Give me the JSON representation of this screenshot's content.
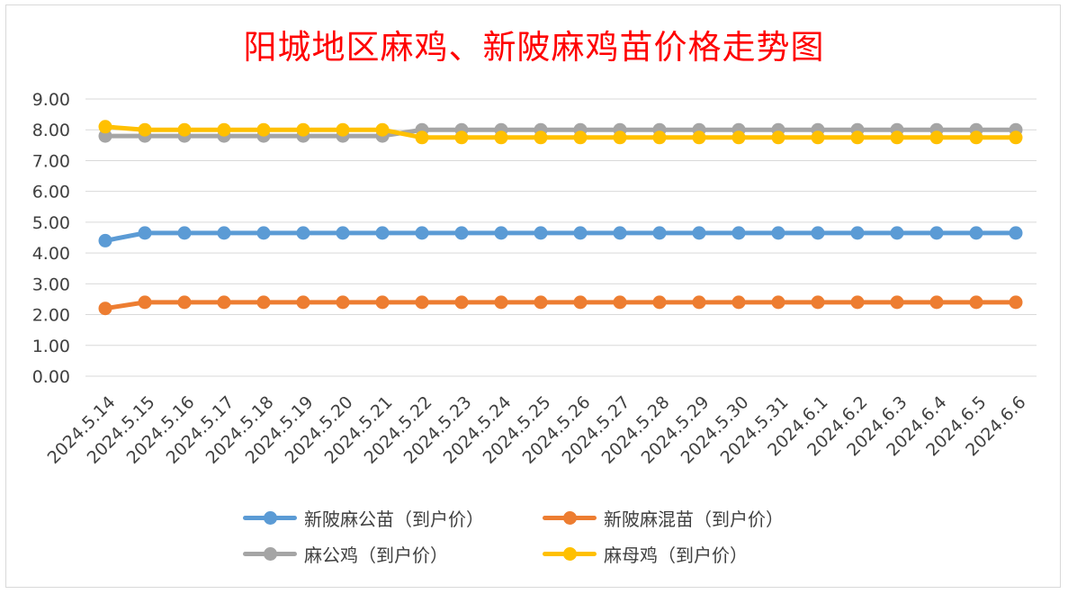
{
  "chart_data": {
    "type": "line",
    "title": "阳城地区麻鸡、新陂麻鸡苗价格走势图",
    "categories": [
      "2024.5.14",
      "2024.5.15",
      "2024.5.16",
      "2024.5.17",
      "2024.5.18",
      "2024.5.19",
      "2024.5.20",
      "2024.5.21",
      "2024.5.22",
      "2024.5.23",
      "2024.5.24",
      "2024.5.25",
      "2024.5.26",
      "2024.5.27",
      "2024.5.28",
      "2024.5.29",
      "2024.5.30",
      "2024.5.31",
      "2024.6.1",
      "2024.6.2",
      "2024.6.3",
      "2024.6.4",
      "2024.6.5",
      "2024.6.6"
    ],
    "y_ticks": [
      "0.00",
      "1.00",
      "2.00",
      "3.00",
      "4.00",
      "5.00",
      "6.00",
      "7.00",
      "8.00",
      "9.00"
    ],
    "ylim": [
      0,
      9
    ],
    "grid": true,
    "legend_position": "bottom",
    "series": [
      {
        "name": "新陂麻公苗（到户价）",
        "color": "#5b9bd5",
        "values": [
          4.4,
          4.65,
          4.65,
          4.65,
          4.65,
          4.65,
          4.65,
          4.65,
          4.65,
          4.65,
          4.65,
          4.65,
          4.65,
          4.65,
          4.65,
          4.65,
          4.65,
          4.65,
          4.65,
          4.65,
          4.65,
          4.65,
          4.65,
          4.65
        ]
      },
      {
        "name": "新陂麻混苗（到户价）",
        "color": "#ed7d31",
        "values": [
          2.2,
          2.4,
          2.4,
          2.4,
          2.4,
          2.4,
          2.4,
          2.4,
          2.4,
          2.4,
          2.4,
          2.4,
          2.4,
          2.4,
          2.4,
          2.4,
          2.4,
          2.4,
          2.4,
          2.4,
          2.4,
          2.4,
          2.4,
          2.4
        ]
      },
      {
        "name": "麻公鸡（到户价）",
        "color": "#a5a5a5",
        "values": [
          7.8,
          7.8,
          7.8,
          7.8,
          7.8,
          7.8,
          7.8,
          7.8,
          8.0,
          8.0,
          8.0,
          8.0,
          8.0,
          8.0,
          8.0,
          8.0,
          8.0,
          8.0,
          8.0,
          8.0,
          8.0,
          8.0,
          8.0,
          8.0
        ]
      },
      {
        "name": "麻母鸡（到户价）",
        "color": "#ffc000",
        "values": [
          8.1,
          8.0,
          8.0,
          8.0,
          8.0,
          8.0,
          8.0,
          8.0,
          7.75,
          7.75,
          7.75,
          7.75,
          7.75,
          7.75,
          7.75,
          7.75,
          7.75,
          7.75,
          7.75,
          7.75,
          7.75,
          7.75,
          7.75,
          7.75
        ]
      }
    ]
  }
}
